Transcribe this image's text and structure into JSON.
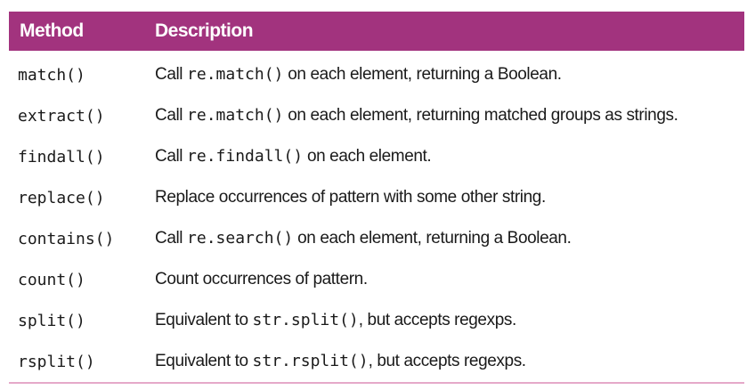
{
  "headers": {
    "method": "Method",
    "description": "Description"
  },
  "rows": [
    {
      "method": "match()",
      "parts": [
        {
          "t": "text",
          "v": "Call "
        },
        {
          "t": "code",
          "v": "re.match()"
        },
        {
          "t": "text",
          "v": " on each element, returning a Boolean."
        }
      ]
    },
    {
      "method": "extract()",
      "parts": [
        {
          "t": "text",
          "v": "Call "
        },
        {
          "t": "code",
          "v": "re.match()"
        },
        {
          "t": "text",
          "v": " on each element, returning matched groups as strings."
        }
      ]
    },
    {
      "method": "findall()",
      "parts": [
        {
          "t": "text",
          "v": "Call "
        },
        {
          "t": "code",
          "v": "re.findall()"
        },
        {
          "t": "text",
          "v": " on each element."
        }
      ]
    },
    {
      "method": "replace()",
      "parts": [
        {
          "t": "text",
          "v": "Replace occurrences of pattern with some other string."
        }
      ]
    },
    {
      "method": "contains()",
      "parts": [
        {
          "t": "text",
          "v": "Call "
        },
        {
          "t": "code",
          "v": "re.search()"
        },
        {
          "t": "text",
          "v": " on each element, returning a Boolean."
        }
      ]
    },
    {
      "method": "count()",
      "parts": [
        {
          "t": "text",
          "v": "Count occurrences of pattern."
        }
      ]
    },
    {
      "method": "split()",
      "parts": [
        {
          "t": "text",
          "v": "Equivalent to "
        },
        {
          "t": "code",
          "v": "str.split()"
        },
        {
          "t": "text",
          "v": ", but accepts regexps."
        }
      ]
    },
    {
      "method": "rsplit()",
      "parts": [
        {
          "t": "text",
          "v": "Equivalent to "
        },
        {
          "t": "code",
          "v": "str.rsplit()"
        },
        {
          "t": "text",
          "v": ", but accepts regexps."
        }
      ]
    }
  ],
  "colors": {
    "header_bg": "#a2337e",
    "header_text": "#ffffff",
    "rule": "#e5a9c9"
  }
}
